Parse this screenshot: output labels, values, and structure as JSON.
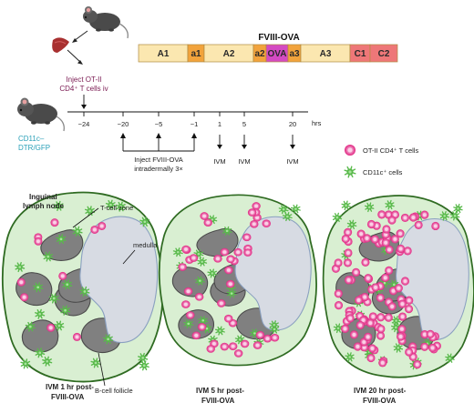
{
  "construct": {
    "title": "FVIII-OVA",
    "segments": [
      {
        "label": "A1",
        "color": "#fbe7b0"
      },
      {
        "label": "a1",
        "color": "#f2a33c"
      },
      {
        "label": "A2",
        "color": "#fbe7b0"
      },
      {
        "label": "a2",
        "color": "#f2a33c"
      },
      {
        "label": "OVA",
        "color": "#d44ac2"
      },
      {
        "label": "a3",
        "color": "#f2a33c"
      },
      {
        "label": "A3",
        "color": "#fbe7b0"
      },
      {
        "label": "C1",
        "color": "#ee7778"
      },
      {
        "label": "C2",
        "color": "#ee7778"
      }
    ]
  },
  "protocol": {
    "inject_cells_line1": "Inject OT-II",
    "inject_cells_line2": "CD4⁺ T cells iv",
    "mouse_label_line1": "CD11c–",
    "mouse_label_line2": "DTR/GFP",
    "timeline_ticks": [
      "−24",
      "−20",
      "−5",
      "−1",
      "1",
      "5",
      "20"
    ],
    "timeline_unit": "hrs",
    "inject_ova_line1": "Inject FVIII-OVA",
    "inject_ova_line2": "intradermally 3×",
    "ivm_labels": [
      "IVM",
      "IVM",
      "IVM"
    ]
  },
  "legend": {
    "t_cells": "OT-II CD4⁺ T cells",
    "cd11c_cells": "CD11c⁺ cells"
  },
  "lymph_node": {
    "title_line1": "Inguinal",
    "title_line2": "lymph node",
    "t_cell_zone": "T-cell zone",
    "medulla": "medulla",
    "b_cell_follicle": "B-cell follicle"
  },
  "panels": [
    {
      "caption_line1": "IVM 1 hr post-",
      "caption_line2": "FVIII-OVA"
    },
    {
      "caption_line1": "IVM 5 hr post-",
      "caption_line2": "FVIII-OVA"
    },
    {
      "caption_line1": "IVM 20 hr post-",
      "caption_line2": "FVIII-OVA"
    }
  ],
  "colors": {
    "node_fill": "#d9efd2",
    "node_border": "#2f6b22",
    "follicle": "#808080",
    "medulla": "#d7dbe3",
    "t_cell_outer": "#e62b8c",
    "t_cell_inner": "#fbc2df",
    "dc_cell": "#59b94b"
  }
}
